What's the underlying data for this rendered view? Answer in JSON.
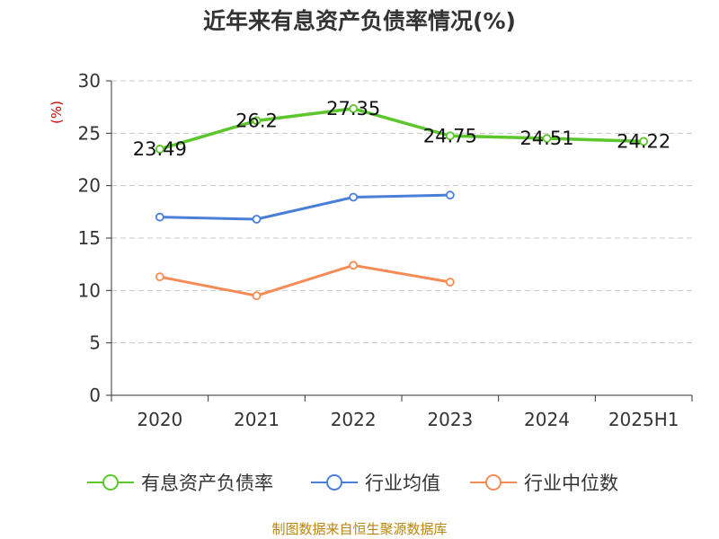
{
  "title": "近年来有息资产负债率情况(%)",
  "footer": "制图数据来自恒生聚源数据库",
  "colors": {
    "series1": "#5cc62d",
    "series2": "#4a7fd8",
    "series3": "#f58b55",
    "ylabel": "#cc0000"
  },
  "chart_data": {
    "type": "line",
    "categories": [
      "2020",
      "2021",
      "2022",
      "2023",
      "2024",
      "2025H1"
    ],
    "ylabel": "(%)",
    "ylim": [
      0,
      30
    ],
    "yticks": [
      0,
      5,
      10,
      15,
      20,
      25,
      30
    ],
    "grid": true,
    "legend_position": "bottom",
    "series": [
      {
        "name": "有息资产负债率",
        "values": [
          23.49,
          26.2,
          27.35,
          24.75,
          24.51,
          24.22
        ],
        "labels": [
          "23.49",
          "26.2",
          "27.35",
          "24.75",
          "24.51",
          "24.22"
        ]
      },
      {
        "name": "行业均值",
        "values": [
          17.0,
          16.8,
          18.9,
          19.1,
          null,
          null
        ]
      },
      {
        "name": "行业中位数",
        "values": [
          11.3,
          9.5,
          12.4,
          10.8,
          null,
          null
        ]
      }
    ]
  }
}
